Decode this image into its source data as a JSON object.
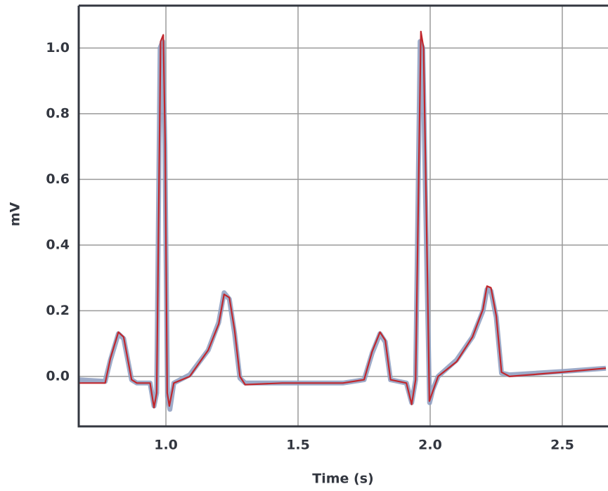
{
  "chart_data": {
    "type": "line",
    "xlabel": "Time (s)",
    "ylabel": "mV",
    "xlim": [
      0.67,
      2.665
    ],
    "ylim": [
      -0.152,
      1.129
    ],
    "xticks": [
      {
        "value": 1,
        "label": "1.0"
      },
      1.5,
      {
        "value": 2,
        "label": "2.0"
      },
      2.5
    ],
    "yticks": [
      {
        "value": 0,
        "label": "0.0"
      },
      0.2,
      0.4,
      0.6,
      0.8,
      {
        "value": 1,
        "label": "1.0"
      }
    ],
    "grid": true,
    "series": [
      {
        "color": "#8c9cbf",
        "x": [
          0.67,
          0.77,
          0.79,
          0.82,
          0.84,
          0.87,
          0.89,
          0.94,
          0.955,
          0.965,
          0.978,
          0.988,
          0.996,
          1.006,
          1.015,
          1.03,
          1.09,
          1.16,
          1.2,
          1.22,
          1.24,
          1.26,
          1.28,
          1.3,
          1.44,
          1.67,
          1.75,
          1.78,
          1.81,
          1.83,
          1.85,
          1.91,
          1.93,
          1.945,
          1.962,
          1.972,
          1.988,
          1.998,
          2.01,
          2.03,
          2.1,
          2.16,
          2.2,
          2.215,
          2.23,
          2.25,
          2.27,
          2.3,
          2.5,
          2.665
        ],
        "values": [
          -0.01,
          -0.015,
          0.05,
          0.13,
          0.115,
          -0.01,
          -0.02,
          -0.02,
          -0.09,
          -0.05,
          1.0,
          1.02,
          0.7,
          -0.06,
          -0.1,
          -0.02,
          0.005,
          0.08,
          0.165,
          0.255,
          0.235,
          0.13,
          -0.005,
          -0.02,
          -0.02,
          -0.02,
          -0.01,
          0.07,
          0.13,
          0.105,
          -0.01,
          -0.02,
          -0.08,
          -0.01,
          1.02,
          1.0,
          0.3,
          -0.08,
          -0.04,
          0.0,
          0.05,
          0.12,
          0.2,
          0.265,
          0.26,
          0.18,
          0.01,
          0.005,
          0.015,
          0.025
        ]
      },
      {
        "color": "#c1272d",
        "x": [
          0.67,
          0.77,
          0.79,
          0.82,
          0.84,
          0.87,
          0.89,
          0.94,
          0.955,
          0.965,
          0.98,
          0.99,
          0.997,
          1.005,
          1.013,
          1.03,
          1.09,
          1.16,
          1.2,
          1.22,
          1.24,
          1.26,
          1.28,
          1.3,
          1.44,
          1.67,
          1.75,
          1.78,
          1.81,
          1.83,
          1.85,
          1.91,
          1.93,
          1.945,
          1.965,
          1.975,
          1.99,
          1.997,
          2.008,
          2.03,
          2.1,
          2.16,
          2.2,
          2.215,
          2.23,
          2.25,
          2.27,
          2.3,
          2.5,
          2.665
        ],
        "values": [
          -0.02,
          -0.02,
          0.055,
          0.135,
          0.12,
          -0.01,
          -0.02,
          -0.02,
          -0.095,
          -0.05,
          1.02,
          1.04,
          0.72,
          -0.05,
          -0.09,
          -0.02,
          0.0,
          0.08,
          0.16,
          0.25,
          0.24,
          0.14,
          0.0,
          -0.025,
          -0.02,
          -0.02,
          -0.01,
          0.075,
          0.135,
          0.11,
          -0.01,
          -0.02,
          -0.085,
          -0.01,
          1.05,
          1.0,
          0.29,
          -0.075,
          -0.05,
          0.0,
          0.045,
          0.12,
          0.205,
          0.275,
          0.27,
          0.185,
          0.013,
          0.0,
          0.013,
          0.025
        ]
      }
    ]
  }
}
